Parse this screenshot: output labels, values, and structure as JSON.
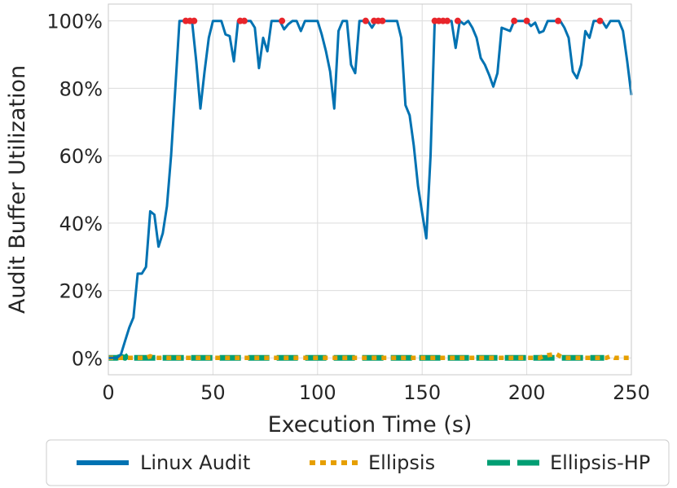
{
  "chart_data": {
    "type": "line",
    "xlabel": "Execution Time (s)",
    "ylabel": "Audit Buffer Utilization",
    "xlim": [
      0,
      250
    ],
    "ylim": [
      -5,
      105
    ],
    "xticks": [
      0,
      50,
      100,
      150,
      200,
      250
    ],
    "xtick_labels": [
      "0",
      "50",
      "100",
      "150",
      "200",
      "250"
    ],
    "yticks": [
      0,
      20,
      40,
      60,
      80,
      100
    ],
    "ytick_labels": [
      "0%",
      "20%",
      "40%",
      "60%",
      "80%",
      "100%"
    ],
    "grid": true,
    "legend_position": "bottom",
    "series": [
      {
        "name": "Linux Audit",
        "color": "#0072b2",
        "style": "solid",
        "points": [
          [
            0,
            0
          ],
          [
            4,
            0
          ],
          [
            6,
            1
          ],
          [
            8,
            5
          ],
          [
            10,
            9
          ],
          [
            12,
            12
          ],
          [
            14,
            25
          ],
          [
            16,
            25
          ],
          [
            18,
            27
          ],
          [
            20,
            43.5
          ],
          [
            22,
            42.5
          ],
          [
            24,
            33
          ],
          [
            26,
            37
          ],
          [
            28,
            45
          ],
          [
            30,
            60
          ],
          [
            32,
            80
          ],
          [
            34,
            100
          ],
          [
            36,
            100
          ],
          [
            38,
            100
          ],
          [
            40,
            100
          ],
          [
            42,
            88
          ],
          [
            44,
            74
          ],
          [
            46,
            85
          ],
          [
            48,
            95
          ],
          [
            50,
            100
          ],
          [
            52,
            100
          ],
          [
            54,
            100
          ],
          [
            56,
            96
          ],
          [
            58,
            95.5
          ],
          [
            60,
            88
          ],
          [
            62,
            100
          ],
          [
            64,
            100
          ],
          [
            66,
            100
          ],
          [
            68,
            100
          ],
          [
            70,
            98
          ],
          [
            72,
            86
          ],
          [
            74,
            95
          ],
          [
            76,
            91
          ],
          [
            78,
            100
          ],
          [
            80,
            100
          ],
          [
            82,
            100
          ],
          [
            84,
            97.5
          ],
          [
            86,
            99
          ],
          [
            88,
            100
          ],
          [
            90,
            100
          ],
          [
            92,
            97
          ],
          [
            94,
            100
          ],
          [
            96,
            100
          ],
          [
            98,
            100
          ],
          [
            100,
            100
          ],
          [
            102,
            96
          ],
          [
            104,
            91
          ],
          [
            106,
            85
          ],
          [
            108,
            74
          ],
          [
            110,
            97
          ],
          [
            112,
            100
          ],
          [
            114,
            100
          ],
          [
            116,
            87
          ],
          [
            118,
            84.5
          ],
          [
            120,
            100
          ],
          [
            122,
            100
          ],
          [
            124,
            100
          ],
          [
            126,
            98
          ],
          [
            128,
            100
          ],
          [
            130,
            100
          ],
          [
            132,
            100
          ],
          [
            134,
            100
          ],
          [
            136,
            100
          ],
          [
            138,
            100
          ],
          [
            140,
            95
          ],
          [
            142,
            75
          ],
          [
            144,
            72
          ],
          [
            146,
            63
          ],
          [
            148,
            51
          ],
          [
            150,
            43
          ],
          [
            152,
            35.5
          ],
          [
            154,
            60
          ],
          [
            156,
            100
          ],
          [
            158,
            100
          ],
          [
            160,
            100
          ],
          [
            162,
            100
          ],
          [
            164,
            100
          ],
          [
            166,
            92
          ],
          [
            168,
            100
          ],
          [
            170,
            99
          ],
          [
            172,
            100
          ],
          [
            174,
            98
          ],
          [
            176,
            95
          ],
          [
            178,
            89
          ],
          [
            180,
            87
          ],
          [
            182,
            84
          ],
          [
            184,
            80.5
          ],
          [
            186,
            84.5
          ],
          [
            188,
            98
          ],
          [
            190,
            97.5
          ],
          [
            192,
            97
          ],
          [
            194,
            100
          ],
          [
            196,
            100
          ],
          [
            198,
            100
          ],
          [
            200,
            100
          ],
          [
            202,
            98.5
          ],
          [
            204,
            99.5
          ],
          [
            206,
            96.5
          ],
          [
            208,
            97
          ],
          [
            210,
            100
          ],
          [
            212,
            100
          ],
          [
            214,
            100
          ],
          [
            216,
            100
          ],
          [
            218,
            98
          ],
          [
            220,
            95
          ],
          [
            222,
            85
          ],
          [
            224,
            83
          ],
          [
            226,
            87
          ],
          [
            228,
            97
          ],
          [
            230,
            95
          ],
          [
            232,
            100
          ],
          [
            234,
            100
          ],
          [
            236,
            100
          ],
          [
            238,
            98
          ],
          [
            240,
            100
          ],
          [
            242,
            100
          ],
          [
            244,
            100
          ],
          [
            246,
            97
          ],
          [
            248,
            88
          ],
          [
            250,
            78
          ]
        ],
        "markers": [
          [
            37,
            100
          ],
          [
            39,
            100
          ],
          [
            41,
            100
          ],
          [
            63,
            100
          ],
          [
            65,
            100
          ],
          [
            83,
            100
          ],
          [
            123,
            100
          ],
          [
            127,
            100
          ],
          [
            129,
            100
          ],
          [
            131,
            100
          ],
          [
            156,
            100
          ],
          [
            158,
            100
          ],
          [
            160,
            100
          ],
          [
            162,
            100
          ],
          [
            167,
            100
          ],
          [
            194,
            100
          ],
          [
            200,
            100
          ],
          [
            215,
            100
          ],
          [
            235,
            100
          ]
        ]
      },
      {
        "name": "Ellipsis",
        "color": "#e69f00",
        "style": "dotted",
        "points": [
          [
            0,
            0
          ],
          [
            18,
            0
          ],
          [
            20,
            0.5
          ],
          [
            22,
            0
          ],
          [
            40,
            0
          ],
          [
            60,
            0
          ],
          [
            80,
            0
          ],
          [
            100,
            0
          ],
          [
            120,
            0
          ],
          [
            140,
            0
          ],
          [
            160,
            0
          ],
          [
            180,
            0
          ],
          [
            200,
            0
          ],
          [
            206,
            0
          ],
          [
            208,
            0.5
          ],
          [
            210,
            0.8
          ],
          [
            212,
            1
          ],
          [
            214,
            1.2
          ],
          [
            216,
            0.5
          ],
          [
            218,
            0
          ],
          [
            238,
            0
          ],
          [
            240,
            0.5
          ],
          [
            242,
            0
          ],
          [
            250,
            0
          ]
        ]
      },
      {
        "name": "Ellipsis-HP",
        "color": "#009e73",
        "style": "dashed",
        "points": [
          [
            0,
            0
          ],
          [
            4,
            0
          ],
          [
            6,
            0.4
          ],
          [
            8,
            0
          ],
          [
            10,
            1
          ],
          [
            12,
            0
          ],
          [
            40,
            0
          ],
          [
            80,
            0
          ],
          [
            120,
            0
          ],
          [
            160,
            0
          ],
          [
            200,
            0
          ],
          [
            237,
            0
          ]
        ]
      }
    ]
  }
}
